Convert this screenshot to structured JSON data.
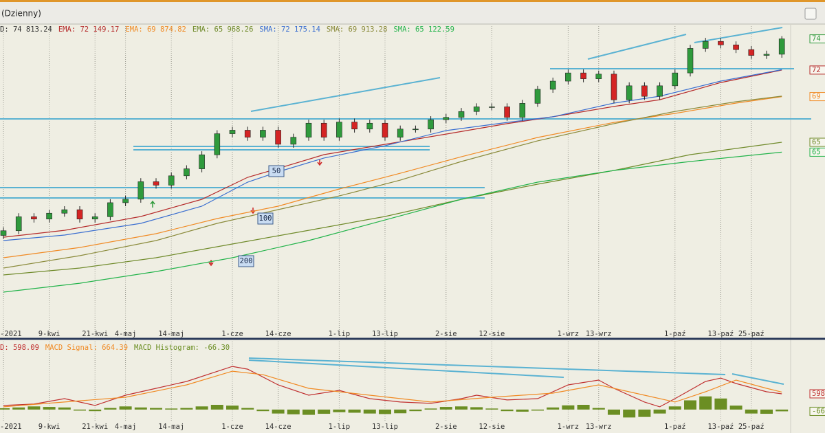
{
  "window_title": "(Dzienny)",
  "chart_data": [
    {
      "type": "candlestick",
      "legend_label": "D: 74 813.24",
      "legend_color": "#333333",
      "categories": [
        "-2021",
        null,
        null,
        "9-kwi",
        null,
        null,
        "21-kwi",
        null,
        "4-maj",
        null,
        null,
        "14-maj",
        null,
        null,
        null,
        "1-cze",
        null,
        null,
        "14-cze",
        null,
        null,
        null,
        "1-lip",
        null,
        null,
        "13-lip",
        null,
        null,
        null,
        "2-sie",
        null,
        null,
        "12-sie",
        null,
        null,
        null,
        null,
        "1-wrz",
        null,
        "13-wrz",
        null,
        null,
        null,
        null,
        "1-paź",
        null,
        null,
        "13-paź",
        null,
        "25-paź",
        null,
        null
      ],
      "open": [
        58000,
        58400,
        59600,
        59400,
        59900,
        60200,
        59400,
        59600,
        60800,
        61100,
        62600,
        62300,
        63100,
        63700,
        64900,
        66700,
        67000,
        66400,
        67000,
        65800,
        66400,
        67600,
        66400,
        67700,
        67100,
        67600,
        66400,
        67100,
        67100,
        67900,
        68100,
        68600,
        69000,
        69000,
        68100,
        69300,
        70500,
        71200,
        71900,
        71400,
        71800,
        69600,
        70800,
        69900,
        70800,
        71900,
        74000,
        74600,
        74300,
        73900,
        73400,
        73500
      ],
      "high": [
        58700,
        59900,
        59900,
        60200,
        60500,
        60500,
        59900,
        61100,
        61400,
        62900,
        62900,
        63400,
        64000,
        65200,
        67000,
        67300,
        67300,
        67300,
        67300,
        66700,
        67900,
        67900,
        68000,
        68000,
        67900,
        67900,
        67400,
        67400,
        68200,
        68400,
        68900,
        69300,
        69300,
        69300,
        69600,
        70800,
        71500,
        72200,
        72200,
        72100,
        72100,
        71100,
        71100,
        71100,
        72200,
        74300,
        74900,
        74900,
        74600,
        74200,
        73800,
        75050
      ],
      "low": [
        57700,
        58100,
        59100,
        59100,
        59600,
        59100,
        59100,
        59300,
        60500,
        60800,
        62000,
        62000,
        62800,
        63400,
        64600,
        66400,
        66100,
        66100,
        65500,
        65500,
        66100,
        66100,
        66100,
        66800,
        66800,
        66100,
        66100,
        66800,
        66800,
        67600,
        67800,
        68300,
        68700,
        67800,
        67800,
        69000,
        70200,
        70900,
        71100,
        71100,
        69300,
        69300,
        69600,
        69600,
        70500,
        71600,
        73700,
        74000,
        73600,
        73100,
        73100,
        73200
      ],
      "close": [
        58400,
        59600,
        59400,
        59900,
        60200,
        59400,
        59600,
        60800,
        61100,
        62600,
        62300,
        63100,
        63700,
        64900,
        66700,
        67000,
        66400,
        67000,
        65800,
        66400,
        67600,
        66400,
        67700,
        67100,
        67600,
        66400,
        67100,
        67100,
        67900,
        68100,
        68600,
        69000,
        69000,
        68100,
        69300,
        70500,
        71200,
        71900,
        71400,
        71800,
        69600,
        70800,
        69900,
        70800,
        71900,
        74000,
        74600,
        74300,
        73900,
        73400,
        73500,
        74813.24
      ],
      "up_color": "#2f9a3c",
      "down_color": "#d42424",
      "ylim": [
        49330,
        75200
      ],
      "series": [
        {
          "name": "EMA: 72 149.17",
          "color": "#b52a2a",
          "x": [
            0,
            4,
            9,
            13,
            16,
            18,
            21,
            25,
            29,
            33,
            36,
            40,
            43,
            47,
            51
          ],
          "values": [
            57850,
            58440,
            59620,
            61090,
            62970,
            63730,
            64910,
            65790,
            66670,
            67560,
            68150,
            69030,
            69610,
            71080,
            72149.17
          ]
        },
        {
          "name": "EMA: 69 874.82",
          "color": "#f08a24",
          "x": [
            0,
            5,
            10,
            14,
            18,
            22,
            26,
            30,
            35,
            40,
            44,
            48,
            51
          ],
          "values": [
            56090,
            56970,
            58150,
            59440,
            60500,
            61970,
            63320,
            64730,
            66380,
            67670,
            68440,
            69320,
            69874.82
          ]
        },
        {
          "name": "EMA: 65 968.26",
          "color": "#6f8a2a",
          "x": [
            0,
            5,
            10,
            15,
            20,
            25,
            30,
            35,
            40,
            45,
            51
          ],
          "values": [
            54620,
            55210,
            56090,
            57270,
            58440,
            59620,
            61090,
            62380,
            63560,
            64910,
            65968.26
          ]
        },
        {
          "name": "SMA: 72 175.14",
          "color": "#3a6ed0",
          "x": [
            0,
            4,
            9,
            13,
            16,
            18,
            21,
            25,
            29,
            33,
            36,
            40,
            43,
            47,
            51
          ],
          "values": [
            57560,
            58030,
            59030,
            60500,
            62560,
            63440,
            64620,
            65670,
            66970,
            67670,
            68150,
            69320,
            69910,
            71200,
            72175.14
          ]
        },
        {
          "name": "SMA: 69 913.28",
          "color": "#8a8a3a",
          "x": [
            0,
            5,
            10,
            14,
            18,
            22,
            26,
            30,
            35,
            40,
            44,
            48,
            51
          ],
          "values": [
            55210,
            56270,
            57560,
            59030,
            60210,
            61380,
            62730,
            64320,
            66090,
            67560,
            68610,
            69440,
            69913.28
          ]
        },
        {
          "name": "SMA: 65 122.59",
          "color": "#22b34a",
          "x": [
            0,
            5,
            10,
            15,
            20,
            25,
            30,
            35,
            40,
            45,
            51
          ],
          "values": [
            53150,
            53910,
            54910,
            56090,
            57560,
            59320,
            61090,
            62560,
            63560,
            64320,
            65122.59
          ]
        }
      ],
      "price_tags": [
        {
          "value": 74813.24,
          "label": "74",
          "color": "#2f9a3c"
        },
        {
          "value": 72149.17,
          "label": "72",
          "color": "#b52a2a"
        },
        {
          "value": 69874.82,
          "label": "69",
          "color": "#f08a24"
        },
        {
          "value": 65968.26,
          "label": "65",
          "color": "#6f8a2a"
        },
        {
          "value": 65122.59,
          "label": "65",
          "color": "#22b34a"
        }
      ],
      "period_labels": [
        "50",
        "100",
        "200"
      ]
    },
    {
      "type": "macd",
      "categories": [
        "-2021",
        null,
        null,
        "9-kwi",
        null,
        null,
        "21-kwi",
        null,
        "4-maj",
        null,
        null,
        "14-maj",
        null,
        null,
        null,
        "1-cze",
        null,
        null,
        "14-cze",
        null,
        null,
        null,
        "1-lip",
        null,
        null,
        "13-lip",
        null,
        null,
        null,
        "2-sie",
        null,
        null,
        "12-sie",
        null,
        null,
        null,
        null,
        "1-wrz",
        null,
        "13-wrz",
        null,
        null,
        null,
        null,
        "1-paź",
        null,
        null,
        "13-paź",
        null,
        "25-paź",
        null,
        null
      ],
      "ylim": [
        -420,
        2580
      ],
      "series": [
        {
          "name": "D: 598.09",
          "color": "#c03030",
          "x": [
            0,
            2,
            4,
            6,
            8,
            10,
            12,
            15,
            16,
            18,
            20,
            22,
            24,
            26,
            28,
            30,
            31,
            33,
            35,
            37,
            39,
            40,
            42,
            43,
            44,
            46,
            47,
            48,
            50,
            51
          ],
          "values": [
            156,
            208,
            416,
            156,
            546,
            806,
            1066,
            1638,
            1534,
            936,
            546,
            728,
            416,
            286,
            234,
            416,
            546,
            364,
            416,
            936,
            1118,
            806,
            286,
            104,
            416,
            1066,
            1196,
            988,
            676,
            598.09
          ]
        },
        {
          "name": "MACD Signal: 664.39",
          "color": "#f08a24",
          "x": [
            0,
            4,
            8,
            12,
            15,
            17,
            20,
            24,
            28,
            32,
            36,
            39,
            42,
            44,
            46,
            48,
            50,
            51
          ],
          "values": [
            104,
            286,
            468,
            936,
            1456,
            1326,
            806,
            546,
            286,
            468,
            624,
            936,
            546,
            286,
            676,
            1118,
            806,
            664.39
          ]
        }
      ],
      "histogram": {
        "name": "MACD Histogram: -66.30",
        "color": "#6b8e23",
        "values": [
          50,
          80,
          120,
          100,
          80,
          -40,
          -60,
          60,
          120,
          80,
          60,
          40,
          60,
          120,
          180,
          150,
          60,
          -60,
          -150,
          -180,
          -200,
          -160,
          -100,
          -120,
          -150,
          -170,
          -140,
          -60,
          40,
          100,
          120,
          90,
          40,
          -60,
          -80,
          -40,
          80,
          160,
          180,
          60,
          -200,
          -300,
          -280,
          -150,
          120,
          350,
          500,
          420,
          150,
          -150,
          -160,
          -66.3
        ]
      },
      "tags": [
        {
          "value": 598.09,
          "label": "598",
          "color": "#c03030"
        },
        {
          "value": -66.3,
          "label": "-66",
          "color": "#6b8e23"
        }
      ]
    }
  ]
}
